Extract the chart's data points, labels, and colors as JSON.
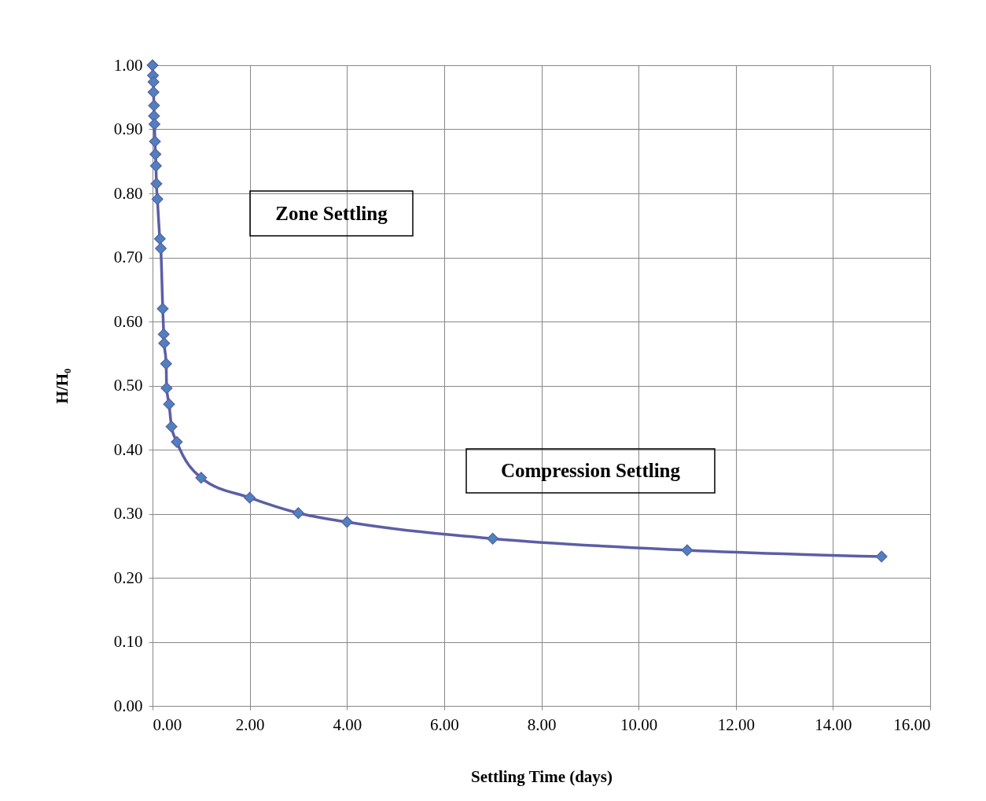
{
  "chart_data": {
    "type": "line",
    "xlabel": "Settling Time (days)",
    "ylabel": "H/H₀",
    "x": [
      0,
      0.01,
      0.02,
      0.02,
      0.03,
      0.03,
      0.04,
      0.05,
      0.06,
      0.07,
      0.08,
      0.1,
      0.15,
      0.17,
      0.21,
      0.23,
      0.24,
      0.28,
      0.29,
      0.34,
      0.39,
      0.5,
      1,
      2,
      3,
      4,
      7,
      11,
      15
    ],
    "series": [
      {
        "color": "#5b5ea6",
        "values": [
          1.0,
          0.984,
          0.974,
          0.958,
          0.937,
          0.921,
          0.908,
          0.881,
          0.861,
          0.843,
          0.815,
          0.791,
          0.729,
          0.714,
          0.62,
          0.58,
          0.566,
          0.534,
          0.496,
          0.471,
          0.436,
          0.412,
          0.356,
          0.325,
          0.301,
          0.287,
          0.261,
          0.243,
          0.233
        ]
      }
    ],
    "xlim": [
      0,
      16
    ],
    "ylim": [
      0,
      1
    ],
    "xticks": [
      {
        "value": 0,
        "label": "0.00"
      },
      {
        "value": 2,
        "label": "2.00"
      },
      {
        "value": 4,
        "label": "4.00"
      },
      {
        "value": 6,
        "label": "6.00"
      },
      {
        "value": 8,
        "label": "8.00"
      },
      {
        "value": 10,
        "label": "10.00"
      },
      {
        "value": 12,
        "label": "12.00"
      },
      {
        "value": 14,
        "label": "14.00"
      },
      {
        "value": 16,
        "label": "16.00"
      }
    ],
    "yticks": [
      {
        "value": 0,
        "label": "0.00"
      },
      {
        "value": 0.1,
        "label": "0.10"
      },
      {
        "value": 0.2,
        "label": "0.20"
      },
      {
        "value": 0.3,
        "label": "0.30"
      },
      {
        "value": 0.4,
        "label": "0.40"
      },
      {
        "value": 0.5,
        "label": "0.50"
      },
      {
        "value": 0.6,
        "label": "0.60"
      },
      {
        "value": 0.7,
        "label": "0.70"
      },
      {
        "value": 0.8,
        "label": "0.80"
      },
      {
        "value": 0.9,
        "label": "0.90"
      },
      {
        "value": 1,
        "label": "1.00"
      }
    ],
    "annotations": [
      "Zone Settling",
      "Compression Settling"
    ],
    "grid": true,
    "marker": "diamond",
    "line_style": "solid"
  }
}
